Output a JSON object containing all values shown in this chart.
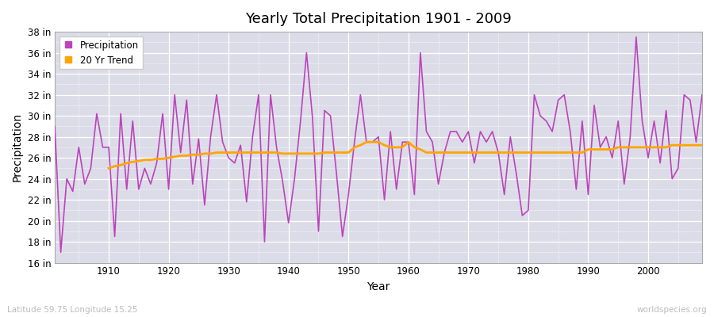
{
  "title": "Yearly Total Precipitation 1901 - 2009",
  "xlabel": "Year",
  "ylabel": "Precipitation",
  "bottom_left_label": "Latitude 59.75 Longitude 15.25",
  "bottom_right_label": "worldspecies.org",
  "ylim": [
    16,
    38
  ],
  "ytick_labels": [
    "16 in",
    "18 in",
    "20 in",
    "22 in",
    "24 in",
    "26 in",
    "28 in",
    "30 in",
    "32 in",
    "34 in",
    "36 in",
    "38 in"
  ],
  "ytick_values": [
    16,
    18,
    20,
    22,
    24,
    26,
    28,
    30,
    32,
    34,
    36,
    38
  ],
  "fig_bg_color": "#ffffff",
  "plot_bg_color": "#dcdce8",
  "grid_color": "#ffffff",
  "precip_color": "#bb44bb",
  "trend_color": "#ffa500",
  "precip_linewidth": 1.2,
  "trend_linewidth": 2.0,
  "years": [
    1901,
    1902,
    1903,
    1904,
    1905,
    1906,
    1907,
    1908,
    1909,
    1910,
    1911,
    1912,
    1913,
    1914,
    1915,
    1916,
    1917,
    1918,
    1919,
    1920,
    1921,
    1922,
    1923,
    1924,
    1925,
    1926,
    1927,
    1928,
    1929,
    1930,
    1931,
    1932,
    1933,
    1934,
    1935,
    1936,
    1937,
    1938,
    1939,
    1940,
    1941,
    1942,
    1943,
    1944,
    1945,
    1946,
    1947,
    1948,
    1949,
    1950,
    1951,
    1952,
    1953,
    1954,
    1955,
    1956,
    1957,
    1958,
    1959,
    1960,
    1961,
    1962,
    1963,
    1964,
    1965,
    1966,
    1967,
    1968,
    1969,
    1970,
    1971,
    1972,
    1973,
    1974,
    1975,
    1976,
    1977,
    1978,
    1979,
    1980,
    1981,
    1982,
    1983,
    1984,
    1985,
    1986,
    1987,
    1988,
    1989,
    1990,
    1991,
    1992,
    1993,
    1994,
    1995,
    1996,
    1997,
    1998,
    1999,
    2000,
    2001,
    2002,
    2003,
    2004,
    2005,
    2006,
    2007,
    2008,
    2009
  ],
  "precip": [
    29.0,
    17.0,
    24.0,
    22.8,
    27.0,
    23.5,
    25.0,
    30.2,
    27.0,
    27.0,
    18.5,
    30.2,
    23.0,
    29.5,
    23.0,
    25.0,
    23.5,
    25.5,
    30.2,
    23.0,
    32.0,
    26.5,
    31.5,
    23.5,
    27.8,
    21.5,
    28.0,
    32.0,
    27.5,
    26.0,
    25.5,
    27.2,
    21.8,
    28.0,
    32.0,
    18.0,
    32.0,
    27.0,
    23.8,
    19.8,
    24.0,
    29.5,
    36.0,
    29.8,
    19.0,
    30.5,
    30.0,
    24.5,
    18.5,
    22.5,
    27.5,
    32.0,
    27.5,
    27.5,
    28.0,
    22.0,
    28.5,
    23.0,
    27.5,
    27.5,
    22.5,
    36.0,
    28.5,
    27.5,
    23.5,
    26.5,
    28.5,
    28.5,
    27.5,
    28.5,
    25.5,
    28.5,
    27.5,
    28.5,
    26.5,
    22.5,
    28.0,
    24.5,
    20.5,
    21.0,
    32.0,
    30.0,
    29.5,
    28.5,
    31.5,
    32.0,
    28.5,
    23.0,
    29.5,
    22.5,
    31.0,
    27.0,
    28.0,
    26.0,
    29.5,
    23.5,
    28.0,
    37.5,
    29.5,
    26.0,
    29.5,
    25.5,
    30.5,
    24.0,
    25.0,
    32.0,
    31.5,
    27.5,
    32.0
  ],
  "trend_years": [
    1910,
    1911,
    1912,
    1913,
    1914,
    1915,
    1916,
    1917,
    1918,
    1919,
    1920,
    1921,
    1922,
    1923,
    1924,
    1925,
    1926,
    1927,
    1928,
    1929,
    1930,
    1931,
    1932,
    1933,
    1934,
    1935,
    1936,
    1937,
    1938,
    1939,
    1940,
    1941,
    1942,
    1943,
    1944,
    1945,
    1946,
    1947,
    1948,
    1949,
    1950,
    1951,
    1952,
    1953,
    1954,
    1955,
    1956,
    1957,
    1958,
    1959,
    1960,
    1961,
    1962,
    1963,
    1964,
    1965,
    1966,
    1967,
    1968,
    1969,
    1970,
    1971,
    1972,
    1973,
    1974,
    1975,
    1976,
    1977,
    1978,
    1979,
    1980,
    1981,
    1982,
    1983,
    1984,
    1985,
    1986,
    1987,
    1988,
    1989,
    1990,
    1991,
    1992,
    1993,
    1994,
    1995,
    1996,
    1997,
    1998,
    1999,
    2000,
    2001,
    2002,
    2003,
    2004,
    2005,
    2006,
    2007,
    2008,
    2009
  ],
  "trend": [
    25.0,
    25.2,
    25.3,
    25.5,
    25.6,
    25.7,
    25.8,
    25.8,
    25.9,
    25.9,
    26.0,
    26.1,
    26.2,
    26.2,
    26.3,
    26.3,
    26.4,
    26.4,
    26.5,
    26.5,
    26.5,
    26.5,
    26.5,
    26.5,
    26.5,
    26.5,
    26.5,
    26.5,
    26.5,
    26.4,
    26.4,
    26.4,
    26.4,
    26.4,
    26.4,
    26.4,
    26.5,
    26.5,
    26.5,
    26.5,
    26.5,
    27.0,
    27.2,
    27.5,
    27.5,
    27.5,
    27.2,
    27.0,
    27.0,
    27.0,
    27.5,
    27.0,
    26.8,
    26.5,
    26.5,
    26.5,
    26.5,
    26.5,
    26.5,
    26.5,
    26.5,
    26.5,
    26.5,
    26.5,
    26.5,
    26.5,
    26.5,
    26.5,
    26.5,
    26.5,
    26.5,
    26.5,
    26.5,
    26.5,
    26.5,
    26.5,
    26.5,
    26.5,
    26.5,
    26.5,
    26.8,
    26.8,
    26.8,
    26.8,
    26.8,
    27.0,
    27.0,
    27.0,
    27.0,
    27.0,
    27.0,
    27.0,
    27.0,
    27.0,
    27.2,
    27.2,
    27.2,
    27.2,
    27.2,
    27.2
  ]
}
